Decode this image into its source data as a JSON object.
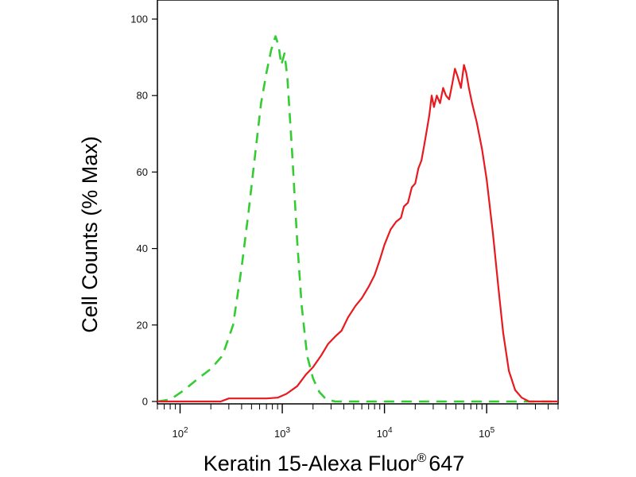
{
  "chart_data": {
    "type": "line",
    "title": "",
    "xlabel": "Keratin 15-Alexa Fluor",
    "xlabel_superscript": "®",
    "xlabel_suffix": "647",
    "ylabel": "Cell Counts (% Max)",
    "x_scale": "log",
    "xlim": [
      60,
      500000
    ],
    "ylim": [
      0,
      100
    ],
    "x_ticks": [
      {
        "base": "10",
        "exp": "2",
        "value": 100
      },
      {
        "base": "10",
        "exp": "3",
        "value": 1000
      },
      {
        "base": "10",
        "exp": "4",
        "value": 10000
      },
      {
        "base": "10",
        "exp": "5",
        "value": 100000
      }
    ],
    "y_ticks": [
      "0",
      "20",
      "40",
      "60",
      "80",
      "100"
    ],
    "grid": false,
    "legend": "none",
    "series": [
      {
        "color": "#33cc33",
        "style": "dashed",
        "points": [
          [
            60,
            0
          ],
          [
            80,
            0.5
          ],
          [
            110,
            3
          ],
          [
            150,
            6
          ],
          [
            200,
            8.5
          ],
          [
            260,
            12
          ],
          [
            330,
            20
          ],
          [
            400,
            35
          ],
          [
            470,
            50
          ],
          [
            550,
            66
          ],
          [
            620,
            78
          ],
          [
            700,
            86
          ],
          [
            780,
            92
          ],
          [
            860,
            95.5
          ],
          [
            920,
            93
          ],
          [
            980,
            88
          ],
          [
            1050,
            91
          ],
          [
            1120,
            85
          ],
          [
            1250,
            65
          ],
          [
            1400,
            42
          ],
          [
            1550,
            25
          ],
          [
            1750,
            12
          ],
          [
            2000,
            6
          ],
          [
            2300,
            2.5
          ],
          [
            2700,
            0.5
          ],
          [
            3300,
            0
          ],
          [
            500000,
            0
          ]
        ]
      },
      {
        "color": "#e8191f",
        "style": "solid",
        "points": [
          [
            60,
            0
          ],
          [
            250,
            0
          ],
          [
            300,
            0.8
          ],
          [
            400,
            0.8
          ],
          [
            700,
            0.8
          ],
          [
            900,
            1
          ],
          [
            1100,
            2
          ],
          [
            1400,
            4
          ],
          [
            1700,
            7
          ],
          [
            2000,
            9
          ],
          [
            2400,
            12
          ],
          [
            2800,
            15
          ],
          [
            3300,
            17
          ],
          [
            3800,
            18.5
          ],
          [
            4400,
            22
          ],
          [
            5200,
            25
          ],
          [
            6000,
            27
          ],
          [
            7000,
            30
          ],
          [
            8000,
            33
          ],
          [
            9000,
            37
          ],
          [
            10000,
            41
          ],
          [
            11500,
            45
          ],
          [
            13000,
            47
          ],
          [
            14500,
            48
          ],
          [
            15500,
            51
          ],
          [
            17000,
            52
          ],
          [
            18500,
            56
          ],
          [
            20000,
            57
          ],
          [
            21500,
            61
          ],
          [
            23000,
            63
          ],
          [
            24500,
            67
          ],
          [
            26000,
            71
          ],
          [
            27500,
            75
          ],
          [
            29000,
            80
          ],
          [
            30500,
            77
          ],
          [
            32500,
            80
          ],
          [
            35000,
            78
          ],
          [
            37500,
            82
          ],
          [
            40000,
            80
          ],
          [
            43000,
            79
          ],
          [
            46000,
            83
          ],
          [
            49000,
            87
          ],
          [
            52000,
            85
          ],
          [
            56000,
            82
          ],
          [
            60000,
            88
          ],
          [
            63000,
            86
          ],
          [
            67000,
            82
          ],
          [
            72000,
            78
          ],
          [
            80000,
            73
          ],
          [
            90000,
            66
          ],
          [
            100000,
            58
          ],
          [
            115000,
            44
          ],
          [
            130000,
            30
          ],
          [
            145000,
            18
          ],
          [
            165000,
            8
          ],
          [
            190000,
            3
          ],
          [
            220000,
            1
          ],
          [
            260000,
            0
          ],
          [
            500000,
            0
          ]
        ]
      }
    ]
  }
}
